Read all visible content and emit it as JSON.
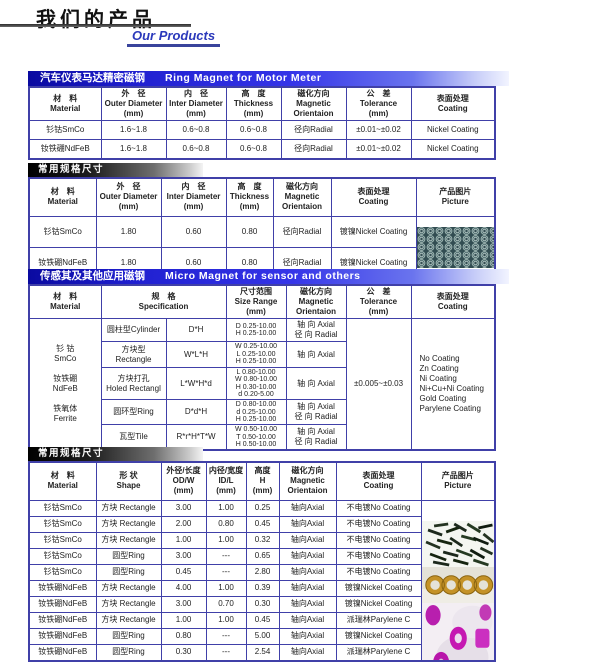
{
  "header": {
    "title_cn": "我们的产品",
    "title_en": "Our Products"
  },
  "t1": {
    "bar_cn": "汽车仪表马达精密磁钢",
    "bar_en": "Ring Magnet for Motor Meter",
    "headers": [
      [
        "材　料",
        "Material"
      ],
      [
        "外　径",
        "Outer Diameter",
        "(mm)"
      ],
      [
        "内　径",
        "Inter Diameter",
        "(mm)"
      ],
      [
        "高　度",
        "Thickness",
        "(mm)"
      ],
      [
        "磁化方向",
        "Magnetic",
        "Orientaion"
      ],
      [
        "公　差",
        "Tolerance",
        "(mm)"
      ],
      [
        "表面处理",
        "Coating"
      ]
    ],
    "rows": [
      [
        "钐钴SmCo",
        "1.6~1.8",
        "0.6~0.8",
        "0.6~0.8",
        "径向Radial",
        "±0.01~±0.02",
        "Nickel Coating"
      ],
      [
        "钕铁硼NdFeB",
        "1.6~1.8",
        "0.6~0.8",
        "0.6~0.8",
        "径向Radial",
        "±0.01~±0.02",
        "Nickel Coating"
      ]
    ]
  },
  "t2": {
    "bar_cn": "常用规格尺寸",
    "headers": [
      [
        "材　料",
        "Material"
      ],
      [
        "外　径",
        "Outer Diameter",
        "(mm)"
      ],
      [
        "内　径",
        "Inter Diameter",
        "(mm)"
      ],
      [
        "高　度",
        "Thickness",
        "(mm)"
      ],
      [
        "磁化方向",
        "Magnetic",
        "Orientaion"
      ],
      [
        "表面处理",
        "Coating"
      ],
      [
        "产品图片",
        "Picture"
      ]
    ],
    "rows": [
      [
        "钐钴SmCo",
        "1.80",
        "0.60",
        "0.80",
        "径向Radial",
        "镀镍Nickel Coating"
      ],
      [
        "钕铁硼NdFeB",
        "1.80",
        "0.60",
        "0.80",
        "径向Radial",
        "镀镍Nickel Coating"
      ]
    ],
    "picture_icon": "ring-magnets-grid-photo"
  },
  "t3": {
    "bar_cn": "传感其及其他应用磁钢",
    "bar_en": "Micro Magnet for sensor and others",
    "headers": [
      [
        "材　料",
        "Material"
      ],
      [
        "规　格",
        "Specification"
      ],
      [
        "尺寸范围",
        "Size Range",
        "(mm)"
      ],
      [
        "磁化方向",
        "Magnetic",
        "Orientaion"
      ],
      [
        "公　差",
        "Tolerance",
        "(mm)"
      ],
      [
        "表面处理",
        "Coating"
      ]
    ],
    "material": [
      "钐 钴",
      "SmCo",
      "",
      "钕铁硼",
      "NdFeB",
      "",
      "铁氧体",
      "Ferrite"
    ],
    "rows": [
      {
        "shape": "圆柱型Cylinder",
        "formula": "D*H",
        "size": [
          "D 0.25-10.00",
          "H 0.25-10.00"
        ],
        "orient": [
          "轴 向 Axial",
          "径 向 Radial"
        ]
      },
      {
        "shape": "方块型Rectangle",
        "formula": "W*L*H",
        "size": [
          "W 0.25-10.00",
          "L 0.25-10.00",
          "H 0.25-10.00"
        ],
        "orient": [
          "轴 向 Axial"
        ]
      },
      {
        "shape": [
          "方块打孔",
          "Holed Rectangl"
        ],
        "formula": "L*W*H*d",
        "size": [
          "L 0.80-10.00",
          "W 0.80-10.00",
          "H 0.30-10.00",
          "d 0.20-5.00"
        ],
        "orient": [
          "轴 向 Axial"
        ]
      },
      {
        "shape": "圆环型Ring",
        "formula": "D*d*H",
        "size": [
          "D 0.80-10.00",
          "d 0.25-10.00",
          "H 0.25-10.00"
        ],
        "orient": [
          "轴 向 Axial",
          "径 向 Radial"
        ]
      },
      {
        "shape": "瓦型Tile",
        "formula": "R*r*H*T*W",
        "size": [
          "W 0.50-10.00",
          "T 0.50-10.00",
          "H 0.50-10.00"
        ],
        "orient": [
          "轴 向 Axial",
          "径 向 Radial"
        ]
      }
    ],
    "tolerance": "±0.005~±0.03",
    "coating": [
      "No Coating",
      "Zn Coating",
      "Ni Coating",
      "Ni+Cu+Ni Coating",
      "Gold Coating",
      "Parylene Coating"
    ]
  },
  "t4": {
    "bar_cn": "常用规格尺寸",
    "headers": [
      [
        "材　料",
        "Material"
      ],
      [
        "形 状",
        "Shape"
      ],
      [
        "外径/长度",
        "OD/W",
        "(mm)"
      ],
      [
        "内径/宽度",
        "ID/L",
        "(mm)"
      ],
      [
        "高度",
        "H",
        "(mm)"
      ],
      [
        "磁化方向",
        "Magnetic",
        "Orientaion"
      ],
      [
        "表面处理",
        "Coating"
      ],
      [
        "产品图片",
        "Picture"
      ]
    ],
    "rows": [
      [
        "钐钴SmCo",
        "方块 Rectangle",
        "3.00",
        "1.00",
        "0.25",
        "轴向Axial",
        "不电镀No Coating"
      ],
      [
        "钐钴SmCo",
        "方块 Rectangle",
        "2.00",
        "0.80",
        "0.45",
        "轴向Axial",
        "不电镀No Coating"
      ],
      [
        "钐钴SmCo",
        "方块 Rectangle",
        "1.00",
        "1.00",
        "0.32",
        "轴向Axial",
        "不电镀No Coating"
      ],
      [
        "钐钴SmCo",
        "圆型Ring",
        "3.00",
        "---",
        "0.65",
        "轴向Axial",
        "不电镀No Coating"
      ],
      [
        "钐钴SmCo",
        "圆型Ring",
        "0.45",
        "---",
        "2.80",
        "轴向Axial",
        "不电镀No Coating"
      ],
      [
        "钕铁硼NdFeB",
        "方块 Rectangle",
        "4.00",
        "1.00",
        "0.39",
        "轴向Axial",
        "镀镍Nickel Coating"
      ],
      [
        "钕铁硼NdFeB",
        "方块 Rectangle",
        "3.00",
        "0.70",
        "0.30",
        "轴向Axial",
        "镀镍Nickel Coating"
      ],
      [
        "钕铁硼NdFeB",
        "方块 Rectangle",
        "1.00",
        "1.00",
        "0.45",
        "轴向Axial",
        "派瑞林Parylene C"
      ],
      [
        "钕铁硼NdFeB",
        "圆型Ring",
        "0.80",
        "---",
        "5.00",
        "轴向Axial",
        "镀镍Nickel Coating"
      ],
      [
        "钕铁硼NdFeB",
        "圆型Ring",
        "0.30",
        "---",
        "2.54",
        "轴向Axial",
        "派瑞林Parylene C"
      ]
    ],
    "picture_icons": [
      "rod-magnets-photo",
      "gold-ring-magnets-photo",
      "purple-magnets-photo"
    ]
  },
  "colors": {
    "accent_blue_bar": "#2020d0",
    "table_border": "#4040a8",
    "title_en_blue": "#2b39bb",
    "dark_bar": "#1c1c1c"
  }
}
